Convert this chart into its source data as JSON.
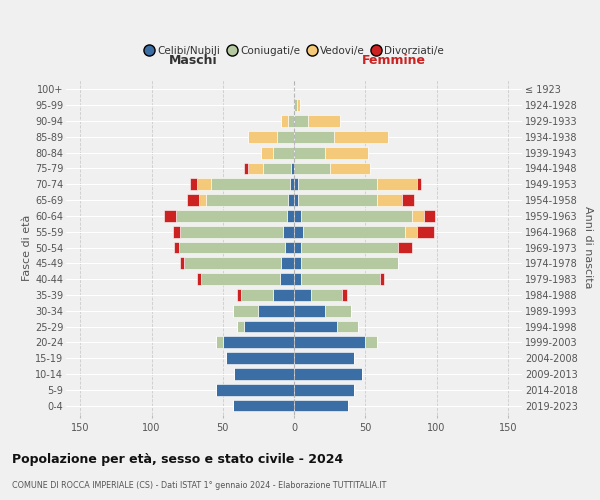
{
  "age_groups": [
    "0-4",
    "5-9",
    "10-14",
    "15-19",
    "20-24",
    "25-29",
    "30-34",
    "35-39",
    "40-44",
    "45-49",
    "50-54",
    "55-59",
    "60-64",
    "65-69",
    "70-74",
    "75-79",
    "80-84",
    "85-89",
    "90-94",
    "95-99",
    "100+"
  ],
  "birth_years": [
    "2019-2023",
    "2014-2018",
    "2009-2013",
    "2004-2008",
    "1999-2003",
    "1994-1998",
    "1989-1993",
    "1984-1988",
    "1979-1983",
    "1974-1978",
    "1969-1973",
    "1964-1968",
    "1959-1963",
    "1954-1958",
    "1949-1953",
    "1944-1948",
    "1939-1943",
    "1934-1938",
    "1929-1933",
    "1924-1928",
    "≤ 1923"
  ],
  "male": {
    "celibi": [
      43,
      55,
      42,
      48,
      50,
      35,
      25,
      15,
      10,
      9,
      6,
      8,
      5,
      4,
      3,
      2,
      0,
      0,
      0,
      0,
      0
    ],
    "coniugati": [
      0,
      0,
      0,
      0,
      5,
      5,
      18,
      22,
      55,
      68,
      75,
      72,
      78,
      58,
      55,
      20,
      15,
      12,
      4,
      0,
      0
    ],
    "vedovi": [
      0,
      0,
      0,
      0,
      0,
      0,
      0,
      0,
      0,
      0,
      0,
      0,
      0,
      5,
      10,
      10,
      8,
      20,
      5,
      0,
      0
    ],
    "divorziati": [
      0,
      0,
      0,
      0,
      0,
      0,
      0,
      3,
      3,
      3,
      3,
      5,
      8,
      8,
      5,
      3,
      0,
      0,
      0,
      0,
      0
    ]
  },
  "female": {
    "nubili": [
      38,
      42,
      48,
      42,
      50,
      30,
      22,
      12,
      5,
      5,
      5,
      6,
      5,
      3,
      3,
      0,
      0,
      0,
      0,
      0,
      0
    ],
    "coniugate": [
      0,
      0,
      0,
      0,
      8,
      15,
      18,
      22,
      55,
      68,
      68,
      72,
      78,
      55,
      55,
      25,
      22,
      28,
      10,
      2,
      0
    ],
    "vedove": [
      0,
      0,
      0,
      0,
      0,
      0,
      0,
      0,
      0,
      0,
      0,
      8,
      8,
      18,
      28,
      28,
      30,
      38,
      22,
      2,
      0
    ],
    "divorziate": [
      0,
      0,
      0,
      0,
      0,
      0,
      0,
      3,
      3,
      0,
      10,
      12,
      8,
      8,
      3,
      0,
      0,
      0,
      0,
      0,
      0
    ]
  },
  "colors": {
    "celibi": "#3a6ea5",
    "coniugati": "#b5c9a0",
    "vedovi": "#f5c97a",
    "divorziati": "#cc2222"
  },
  "legend_labels": [
    "Celibi/Nubili",
    "Coniugati/e",
    "Vedovi/e",
    "Divorziati/e"
  ],
  "title": "Popolazione per età, sesso e stato civile - 2024",
  "subtitle": "COMUNE DI ROCCA IMPERIALE (CS) - Dati ISTAT 1° gennaio 2024 - Elaborazione TUTTITALIA.IT",
  "label_maschi": "Maschi",
  "label_femmine": "Femmine",
  "ylabel_left": "Fasce di età",
  "ylabel_right": "Anni di nascita",
  "xlim": 160,
  "bg_color": "#f0f0f0"
}
